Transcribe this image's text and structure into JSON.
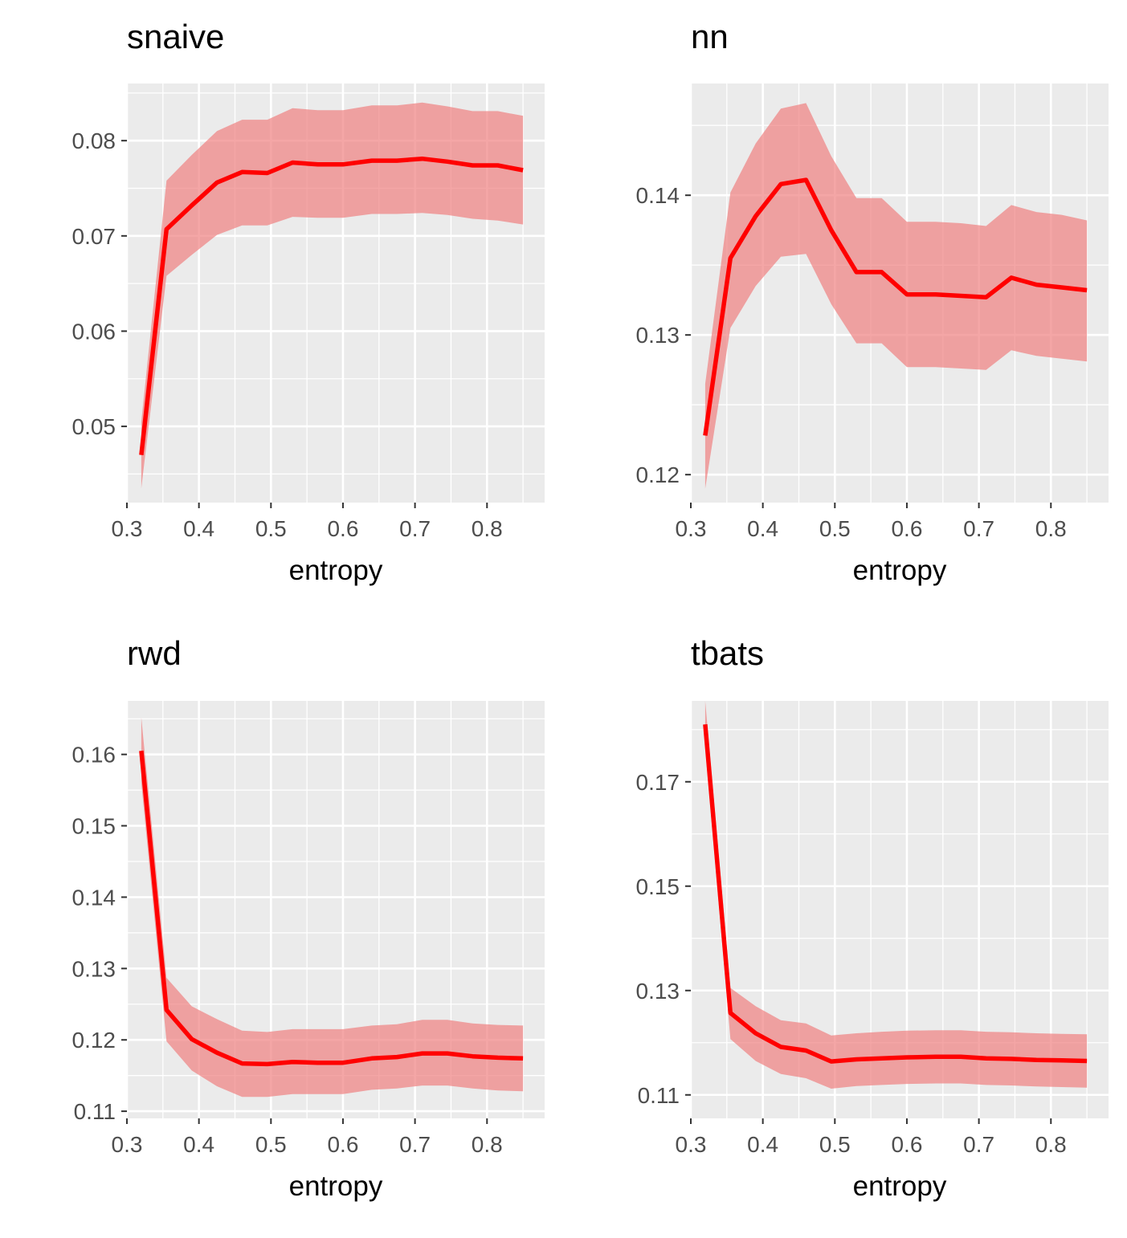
{
  "chart_data": [
    {
      "type": "line",
      "title": "snaive",
      "xlabel": "entropy",
      "ylabel": "",
      "xlim": [
        0.3,
        0.88
      ],
      "ylim": [
        0.042,
        0.086
      ],
      "xticks": [
        0.3,
        0.4,
        0.5,
        0.6,
        0.7,
        0.8
      ],
      "yticks": [
        0.05,
        0.06,
        0.07,
        0.08
      ],
      "xtick_labels": [
        "0.3",
        "0.4",
        "0.5",
        "0.6",
        "0.7",
        "0.8"
      ],
      "ytick_labels": [
        "0.05",
        "0.06",
        "0.07",
        "0.08"
      ],
      "grid": true,
      "series": [
        {
          "x": [
            0.32,
            0.355,
            0.39,
            0.425,
            0.46,
            0.495,
            0.53,
            0.565,
            0.6,
            0.64,
            0.675,
            0.71,
            0.745,
            0.78,
            0.815,
            0.85
          ],
          "y": [
            0.047,
            0.0707,
            0.0732,
            0.0756,
            0.0767,
            0.0766,
            0.0777,
            0.0775,
            0.0775,
            0.0779,
            0.0779,
            0.0781,
            0.0778,
            0.0774,
            0.0774,
            0.0769
          ],
          "lower": [
            0.0435,
            0.0658,
            0.068,
            0.0701,
            0.0711,
            0.0711,
            0.072,
            0.0719,
            0.0719,
            0.0723,
            0.0723,
            0.0724,
            0.0722,
            0.0718,
            0.0716,
            0.0712
          ],
          "upper": [
            0.0505,
            0.0758,
            0.0785,
            0.081,
            0.0822,
            0.0822,
            0.0834,
            0.0832,
            0.0832,
            0.0837,
            0.0837,
            0.084,
            0.0836,
            0.0831,
            0.0831,
            0.0826
          ]
        }
      ]
    },
    {
      "type": "line",
      "title": "nn",
      "xlabel": "entropy",
      "ylabel": "",
      "xlim": [
        0.3,
        0.88
      ],
      "ylim": [
        0.118,
        0.148
      ],
      "xticks": [
        0.3,
        0.4,
        0.5,
        0.6,
        0.7,
        0.8
      ],
      "yticks": [
        0.12,
        0.13,
        0.14
      ],
      "xtick_labels": [
        "0.3",
        "0.4",
        "0.5",
        "0.6",
        "0.7",
        "0.8"
      ],
      "ytick_labels": [
        "0.12",
        "0.13",
        "0.14"
      ],
      "grid": true,
      "series": [
        {
          "x": [
            0.32,
            0.355,
            0.39,
            0.425,
            0.46,
            0.495,
            0.53,
            0.565,
            0.6,
            0.64,
            0.675,
            0.71,
            0.745,
            0.78,
            0.815,
            0.85
          ],
          "y": [
            0.1228,
            0.1355,
            0.1385,
            0.1408,
            0.1411,
            0.1375,
            0.1345,
            0.1345,
            0.1329,
            0.1329,
            0.1328,
            0.1327,
            0.1341,
            0.1336,
            0.1334,
            0.1332
          ],
          "lower": [
            0.119,
            0.1305,
            0.1335,
            0.1356,
            0.1358,
            0.1322,
            0.1294,
            0.1294,
            0.1277,
            0.1277,
            0.1276,
            0.1275,
            0.1289,
            0.1285,
            0.1283,
            0.1281
          ],
          "upper": [
            0.1265,
            0.1402,
            0.1437,
            0.1462,
            0.1466,
            0.1428,
            0.1398,
            0.1398,
            0.1381,
            0.1381,
            0.138,
            0.1378,
            0.1393,
            0.1388,
            0.1386,
            0.1382
          ]
        }
      ]
    },
    {
      "type": "line",
      "title": "rwd",
      "xlabel": "entropy",
      "ylabel": "",
      "xlim": [
        0.3,
        0.88
      ],
      "ylim": [
        0.109,
        0.1675
      ],
      "xticks": [
        0.3,
        0.4,
        0.5,
        0.6,
        0.7,
        0.8
      ],
      "yticks": [
        0.11,
        0.12,
        0.13,
        0.14,
        0.15,
        0.16
      ],
      "xtick_labels": [
        "0.3",
        "0.4",
        "0.5",
        "0.6",
        "0.7",
        "0.8"
      ],
      "ytick_labels": [
        "0.11",
        "0.12",
        "0.13",
        "0.14",
        "0.15",
        "0.16"
      ],
      "grid": true,
      "series": [
        {
          "x": [
            0.32,
            0.355,
            0.39,
            0.425,
            0.46,
            0.495,
            0.53,
            0.565,
            0.6,
            0.64,
            0.675,
            0.71,
            0.745,
            0.78,
            0.815,
            0.85
          ],
          "y": [
            0.1605,
            0.1242,
            0.1201,
            0.1182,
            0.1167,
            0.1166,
            0.1169,
            0.1168,
            0.1168,
            0.1174,
            0.1176,
            0.1181,
            0.1181,
            0.1177,
            0.1175,
            0.1174
          ],
          "lower": [
            0.156,
            0.1198,
            0.1157,
            0.1135,
            0.112,
            0.112,
            0.1124,
            0.1124,
            0.1124,
            0.113,
            0.1132,
            0.1136,
            0.1136,
            0.1132,
            0.1129,
            0.1128
          ],
          "upper": [
            0.1652,
            0.1287,
            0.1247,
            0.1229,
            0.1213,
            0.1211,
            0.1215,
            0.1215,
            0.1215,
            0.122,
            0.1222,
            0.1228,
            0.1228,
            0.1223,
            0.1221,
            0.122
          ]
        }
      ]
    },
    {
      "type": "line",
      "title": "tbats",
      "xlabel": "entropy",
      "ylabel": "",
      "xlim": [
        0.3,
        0.88
      ],
      "ylim": [
        0.1055,
        0.1855
      ],
      "xticks": [
        0.3,
        0.4,
        0.5,
        0.6,
        0.7,
        0.8
      ],
      "yticks": [
        0.11,
        0.13,
        0.15,
        0.17
      ],
      "xtick_labels": [
        "0.3",
        "0.4",
        "0.5",
        "0.6",
        "0.7",
        "0.8"
      ],
      "ytick_labels": [
        "0.11",
        "0.13",
        "0.15",
        "0.17"
      ],
      "grid": true,
      "series": [
        {
          "x": [
            0.32,
            0.355,
            0.39,
            0.425,
            0.46,
            0.495,
            0.53,
            0.565,
            0.6,
            0.64,
            0.675,
            0.71,
            0.745,
            0.78,
            0.815,
            0.85
          ],
          "y": [
            0.181,
            0.1257,
            0.1218,
            0.1192,
            0.1185,
            0.1164,
            0.1168,
            0.117,
            0.1172,
            0.1173,
            0.1173,
            0.117,
            0.1169,
            0.1167,
            0.1166,
            0.1165
          ],
          "lower": [
            0.1765,
            0.1207,
            0.1165,
            0.114,
            0.1132,
            0.1112,
            0.1117,
            0.1119,
            0.1121,
            0.1122,
            0.1122,
            0.1119,
            0.1118,
            0.1116,
            0.1115,
            0.1114
          ],
          "upper": [
            0.1855,
            0.1305,
            0.127,
            0.1243,
            0.1237,
            0.1214,
            0.1218,
            0.1221,
            0.1223,
            0.1224,
            0.1224,
            0.1221,
            0.122,
            0.1218,
            0.1217,
            0.1216
          ]
        }
      ]
    }
  ],
  "colors": {
    "line": "#ff0000",
    "ribbon": "#f08080",
    "panel_background": "#ebebeb",
    "grid": "#ffffff",
    "tick_text": "#4d4d4d",
    "title_text": "#000000"
  }
}
